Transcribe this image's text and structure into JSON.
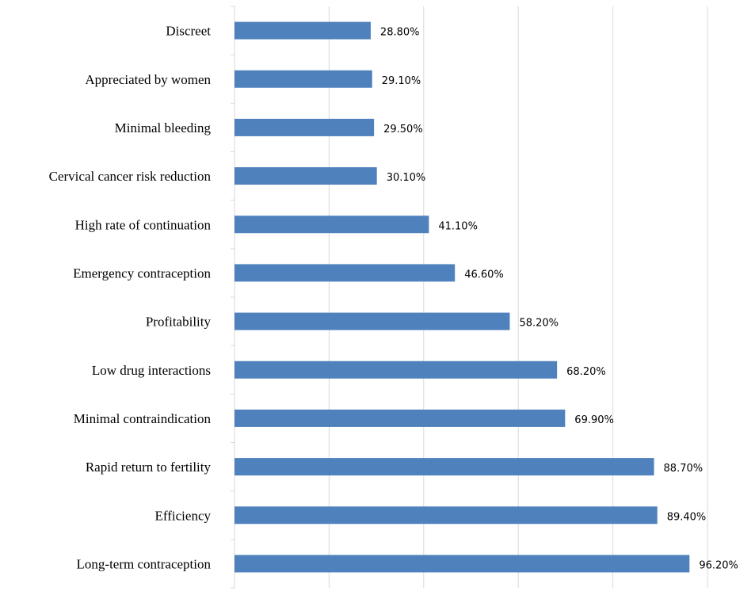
{
  "chart_data": {
    "type": "bar",
    "orientation": "horizontal",
    "categories": [
      "Discreet",
      "Appreciated by women",
      "Minimal bleeding",
      "Cervical cancer risk reduction",
      "High rate of continuation",
      "Emergency contraception",
      "Profitability",
      "Low drug interactions",
      "Minimal contraindication",
      "Rapid return to fertility",
      "Efficiency",
      "Long-term contraception"
    ],
    "values": [
      28.8,
      29.1,
      29.5,
      30.1,
      41.1,
      46.6,
      58.2,
      68.2,
      69.9,
      88.7,
      89.4,
      96.2
    ],
    "value_labels": [
      "28.80%",
      "29.10%",
      "29.50%",
      "30.10%",
      "41.10%",
      "46.60%",
      "58.20%",
      "68.20%",
      "69.90%",
      "88.70%",
      "89.40%",
      "96.20%"
    ],
    "xlim": [
      0,
      100
    ],
    "grid": true,
    "bar_color": "#4f81bd"
  }
}
